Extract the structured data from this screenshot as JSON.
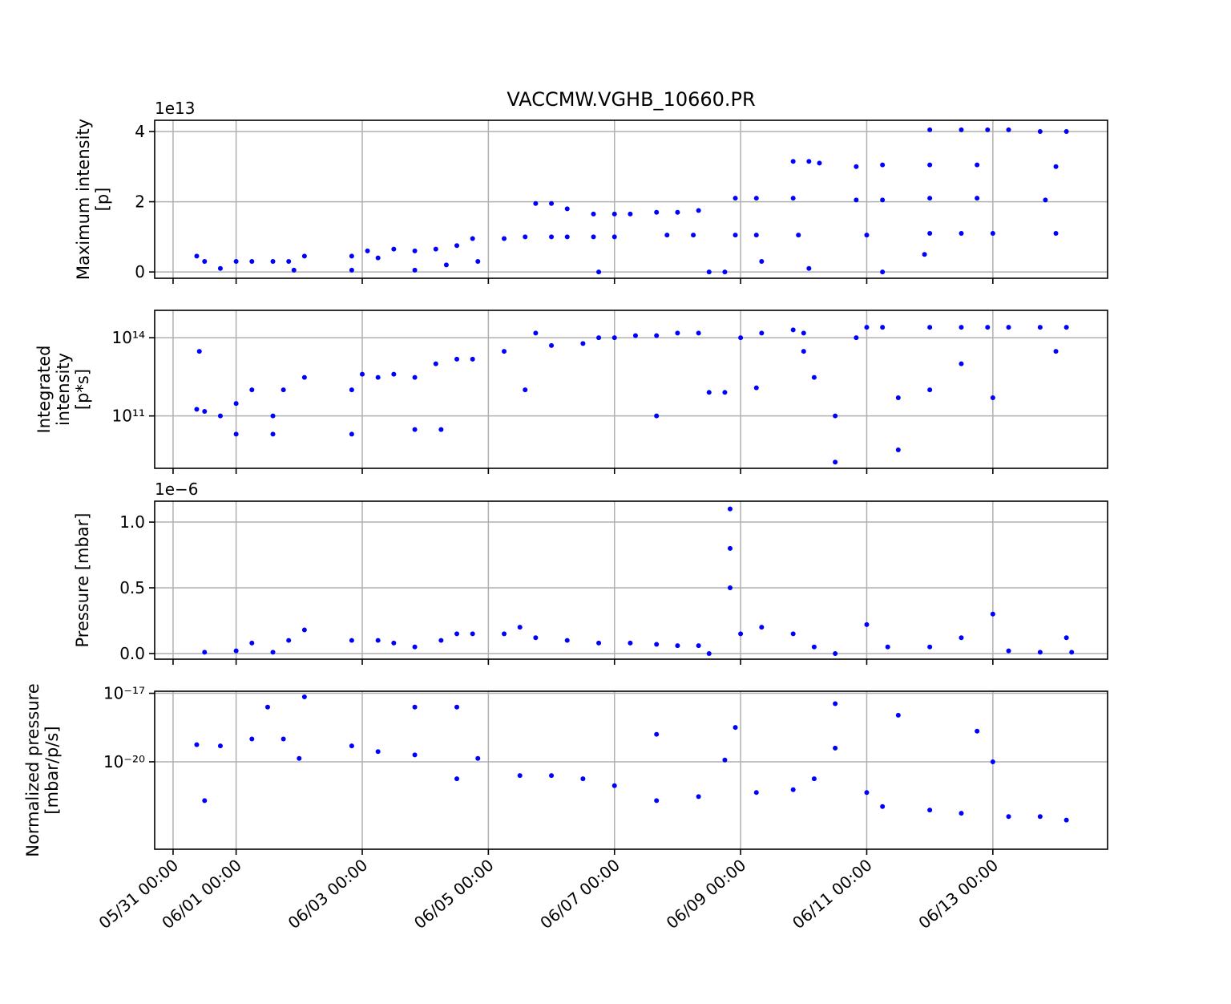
{
  "chart_data": [
    {
      "type": "scatter",
      "title": "VACCMW.VGHB_10660.PR",
      "ylabel": [
        "Maximum intensity",
        "[p]"
      ],
      "offset_text": "1e13",
      "color": "#0000ff",
      "grid": true,
      "log": false,
      "xlim": [
        "05/30 17:00",
        "06/14 19:40"
      ],
      "xticks": [
        "05/31 00:00",
        "06/01 00:00",
        "06/03 00:00",
        "06/05 00:00",
        "06/07 00:00",
        "06/09 00:00",
        "06/11 00:00",
        "06/13 00:00"
      ],
      "ylim": [
        -0.18,
        4.32
      ],
      "yticks": [
        0,
        2,
        4
      ],
      "x": [
        "05/31 09:00",
        "05/31 12:00",
        "06/01 00:00",
        "06/01 06:00",
        "05/31 18:00",
        "06/01 14:00",
        "06/01 20:00",
        "06/02 02:00",
        "06/01 22:00",
        "06/02 20:00",
        "06/03 02:00",
        "06/03 12:00",
        "06/02 20:00",
        "06/03 06:00",
        "06/03 20:00",
        "06/04 04:00",
        "06/04 12:00",
        "06/03 20:00",
        "06/04 08:00",
        "06/04 18:00",
        "06/05 06:00",
        "06/05 14:00",
        "06/04 20:00",
        "06/05 18:00",
        "06/06 00:00",
        "06/06 06:00",
        "06/06 00:00",
        "06/06 06:00",
        "06/06 16:00",
        "06/07 00:00",
        "06/07 06:00",
        "06/06 16:00",
        "06/07 00:00",
        "06/06 18:00",
        "06/07 16:00",
        "06/08 00:00",
        "06/08 08:00",
        "06/07 20:00",
        "06/08 06:00",
        "06/08 12:00",
        "06/08 18:00",
        "06/08 22:00",
        "06/09 06:00",
        "06/08 22:00",
        "06/09 06:00",
        "06/09 08:00",
        "06/09 20:00",
        "06/10 02:00",
        "06/09 20:00",
        "06/09 22:00",
        "06/10 02:00",
        "06/10 06:00",
        "06/10 20:00",
        "06/11 06:00",
        "06/10 20:00",
        "06/11 06:00",
        "06/11 00:00",
        "06/11 06:00",
        "06/12 00:00",
        "06/12 12:00",
        "06/12 22:00",
        "06/13 06:00",
        "06/12 00:00",
        "06/12 18:00",
        "06/12 00:00",
        "06/12 18:00",
        "06/12 00:00",
        "06/12 12:00",
        "06/13 00:00",
        "06/11 22:00",
        "06/13 18:00",
        "06/14 04:00",
        "06/14 00:00",
        "06/13 20:00",
        "06/14 00:00"
      ],
      "values": [
        0.45,
        0.3,
        0.3,
        0.3,
        0.1,
        0.3,
        0.3,
        0.45,
        0.05,
        0.45,
        0.6,
        0.65,
        0.05,
        0.4,
        0.6,
        0.65,
        0.75,
        0.05,
        0.2,
        0.95,
        0.95,
        1.0,
        0.3,
        1.95,
        1.95,
        1.8,
        1.0,
        1.0,
        1.65,
        1.65,
        1.65,
        1.0,
        1.0,
        0.0,
        1.7,
        1.7,
        1.75,
        1.05,
        1.05,
        0.0,
        0.0,
        2.1,
        2.1,
        1.05,
        1.05,
        0.3,
        3.15,
        3.15,
        2.1,
        1.05,
        0.1,
        3.1,
        3.0,
        3.05,
        2.05,
        2.05,
        1.05,
        0.0,
        4.05,
        4.05,
        4.05,
        4.05,
        3.05,
        3.05,
        2.1,
        2.1,
        1.1,
        1.1,
        1.1,
        0.5,
        4.0,
        4.0,
        3.0,
        2.05,
        1.1
      ]
    },
    {
      "type": "scatter",
      "ylabel": [
        "Integrated",
        "intensity",
        "[p*s]"
      ],
      "color": "#0000ff",
      "grid": true,
      "log": true,
      "xlim": [
        "05/30 17:00",
        "06/14 19:40"
      ],
      "xticks": [
        "05/31 00:00",
        "06/01 00:00",
        "06/03 00:00",
        "06/05 00:00",
        "06/07 00:00",
        "06/09 00:00",
        "06/11 00:00",
        "06/13 00:00"
      ],
      "ylim": [
        980000000.0,
        1120000000000000.0
      ],
      "yticks": [
        {
          "value": 100000000000.0,
          "label": "10¹¹"
        },
        {
          "value": 100000000000000.0,
          "label": "10¹⁴"
        }
      ],
      "x": [
        "05/31 09:00",
        "05/31 10:00",
        "05/31 12:00",
        "05/31 18:00",
        "06/01 00:00",
        "06/01 06:00",
        "06/01 00:00",
        "06/01 14:00",
        "06/01 18:00",
        "06/02 02:00",
        "06/01 14:00",
        "06/02 20:00",
        "06/02 20:00",
        "06/03 00:00",
        "06/03 06:00",
        "06/03 12:00",
        "06/03 20:00",
        "06/04 04:00",
        "06/04 12:00",
        "06/03 20:00",
        "06/04 06:00",
        "06/04 18:00",
        "06/05 06:00",
        "06/05 18:00",
        "06/05 14:00",
        "06/06 00:00",
        "06/06 12:00",
        "06/06 18:00",
        "06/07 00:00",
        "06/07 08:00",
        "06/07 16:00",
        "06/07 16:00",
        "06/08 00:00",
        "06/08 08:00",
        "06/08 12:00",
        "06/08 18:00",
        "06/09 00:00",
        "06/09 08:00",
        "06/09 06:00",
        "06/09 20:00",
        "06/10 00:00",
        "06/10 04:00",
        "06/10 00:00",
        "06/10 12:00",
        "06/10 12:00",
        "06/10 20:00",
        "06/11 00:00",
        "06/11 06:00",
        "06/11 12:00",
        "06/11 12:00",
        "06/12 00:00",
        "06/12 12:00",
        "06/12 22:00",
        "06/13 06:00",
        "06/12 00:00",
        "06/12 12:00",
        "06/13 00:00",
        "06/13 18:00",
        "06/14 04:00",
        "06/14 00:00"
      ],
      "values": [
        180000000000.0,
        30000000000000.0,
        150000000000.0,
        100000000000.0,
        300000000000.0,
        1000000000000.0,
        20000000000.0,
        100000000000.0,
        1000000000000.0,
        3000000000000.0,
        20000000000.0,
        1000000000000.0,
        20000000000.0,
        4000000000000.0,
        3000000000000.0,
        4000000000000.0,
        3000000000000.0,
        10000000000000.0,
        15000000000000.0,
        30000000000.0,
        30000000000.0,
        15000000000000.0,
        30000000000000.0,
        150000000000000.0,
        1000000000000.0,
        50000000000000.0,
        60000000000000.0,
        100000000000000.0,
        100000000000000.0,
        120000000000000.0,
        120000000000000.0,
        100000000000.0,
        150000000000000.0,
        150000000000000.0,
        800000000000.0,
        800000000000.0,
        100000000000000.0,
        150000000000000.0,
        1200000000000.0,
        200000000000000.0,
        150000000000000.0,
        3000000000000.0,
        30000000000000.0,
        1700000000.0,
        100000000000.0,
        100000000000000.0,
        250000000000000.0,
        250000000000000.0,
        500000000000.0,
        5000000000.0,
        250000000000000.0,
        250000000000000.0,
        250000000000000.0,
        250000000000000.0,
        1000000000000.0,
        10000000000000.0,
        500000000000.0,
        250000000000000.0,
        250000000000000.0,
        30000000000000.0
      ]
    },
    {
      "type": "scatter",
      "ylabel": [
        "Pressure [mbar]"
      ],
      "offset_text": "1e−6",
      "color": "#0000ff",
      "grid": true,
      "log": false,
      "xlim": [
        "05/30 17:00",
        "06/14 19:40"
      ],
      "xticks": [
        "05/31 00:00",
        "06/01 00:00",
        "06/03 00:00",
        "06/05 00:00",
        "06/07 00:00",
        "06/09 00:00",
        "06/11 00:00",
        "06/13 00:00"
      ],
      "ylim": [
        -0.043,
        1.159
      ],
      "yticks": [
        {
          "value": 0,
          "label": "0.0"
        },
        {
          "value": 0.5,
          "label": "0.5"
        },
        {
          "value": 1,
          "label": "1.0"
        }
      ],
      "x": [
        "05/31 12:00",
        "06/01 00:00",
        "06/01 06:00",
        "06/01 14:00",
        "06/01 20:00",
        "06/02 02:00",
        "06/02 20:00",
        "06/03 06:00",
        "06/03 12:00",
        "06/03 20:00",
        "06/04 06:00",
        "06/04 12:00",
        "06/04 18:00",
        "06/05 06:00",
        "06/05 12:00",
        "06/05 18:00",
        "06/06 06:00",
        "06/06 18:00",
        "06/07 06:00",
        "06/07 16:00",
        "06/08 00:00",
        "06/08 08:00",
        "06/08 12:00",
        "06/08 20:00",
        "06/08 20:00",
        "06/08 20:00",
        "06/09 00:00",
        "06/09 08:00",
        "06/09 20:00",
        "06/10 04:00",
        "06/10 12:00",
        "06/11 00:00",
        "06/11 08:00",
        "06/12 00:00",
        "06/12 12:00",
        "06/13 00:00",
        "06/13 06:00",
        "06/13 18:00",
        "06/14 04:00",
        "06/14 06:00"
      ],
      "values": [
        0.01,
        0.02,
        0.08,
        0.01,
        0.1,
        0.18,
        0.1,
        0.1,
        0.08,
        0.05,
        0.1,
        0.15,
        0.15,
        0.15,
        0.2,
        0.12,
        0.1,
        0.08,
        0.08,
        0.07,
        0.06,
        0.06,
        0.0,
        1.1,
        0.8,
        0.5,
        0.15,
        0.2,
        0.15,
        0.05,
        0.0,
        0.22,
        0.05,
        0.05,
        0.12,
        0.3,
        0.02,
        0.01,
        0.12,
        0.01
      ]
    },
    {
      "type": "scatter",
      "ylabel": [
        "Normalized pressure",
        "[mbar/p/s]"
      ],
      "color": "#0000ff",
      "grid": true,
      "log": true,
      "xlim": [
        "05/30 17:00",
        "06/14 19:40"
      ],
      "xticks": [
        "05/31 00:00",
        "06/01 00:00",
        "06/03 00:00",
        "06/05 00:00",
        "06/07 00:00",
        "06/09 00:00",
        "06/11 00:00",
        "06/13 00:00"
      ],
      "ylim": [
        1.48e-24,
        1.23e-17
      ],
      "yticks": [
        {
          "value": 1e-20,
          "label": "10⁻²⁰"
        },
        {
          "value": 1e-17,
          "label": "10⁻¹⁷"
        }
      ],
      "x": [
        "05/31 09:00",
        "05/31 12:00",
        "05/31 18:00",
        "06/01 06:00",
        "06/01 12:00",
        "06/01 18:00",
        "06/02 02:00",
        "06/02 00:00",
        "06/02 20:00",
        "06/03 06:00",
        "06/03 20:00",
        "06/03 20:00",
        "06/04 12:00",
        "06/04 12:00",
        "06/04 20:00",
        "06/05 12:00",
        "06/06 00:00",
        "06/06 12:00",
        "06/07 00:00",
        "06/07 16:00",
        "06/07 16:00",
        "06/08 08:00",
        "06/08 18:00",
        "06/08 22:00",
        "06/09 06:00",
        "06/09 20:00",
        "06/10 04:00",
        "06/10 12:00",
        "06/10 12:00",
        "06/11 00:00",
        "06/11 06:00",
        "06/11 12:00",
        "06/12 00:00",
        "06/12 12:00",
        "06/12 18:00",
        "06/13 00:00",
        "06/13 06:00",
        "06/13 18:00",
        "06/14 04:00"
      ],
      "values": [
        5.6e-20,
        2e-22,
        5e-20,
        1e-19,
        2.5e-18,
        1e-19,
        7e-18,
        1.4e-20,
        5e-20,
        2.8e-20,
        2e-20,
        2.5e-18,
        2.5e-18,
        1.8e-21,
        1.4e-20,
        2.5e-21,
        2.5e-21,
        1.8e-21,
        9e-22,
        2e-22,
        1.6e-19,
        3e-22,
        1.2e-20,
        3.2e-19,
        4.5e-22,
        6e-22,
        1.8e-21,
        3.5e-18,
        4e-20,
        4.5e-22,
        1.1e-22,
        1.1e-18,
        7.7e-23,
        5.6e-23,
        2.2e-19,
        1e-20,
        4e-23,
        4e-23,
        2.8e-23
      ]
    }
  ]
}
